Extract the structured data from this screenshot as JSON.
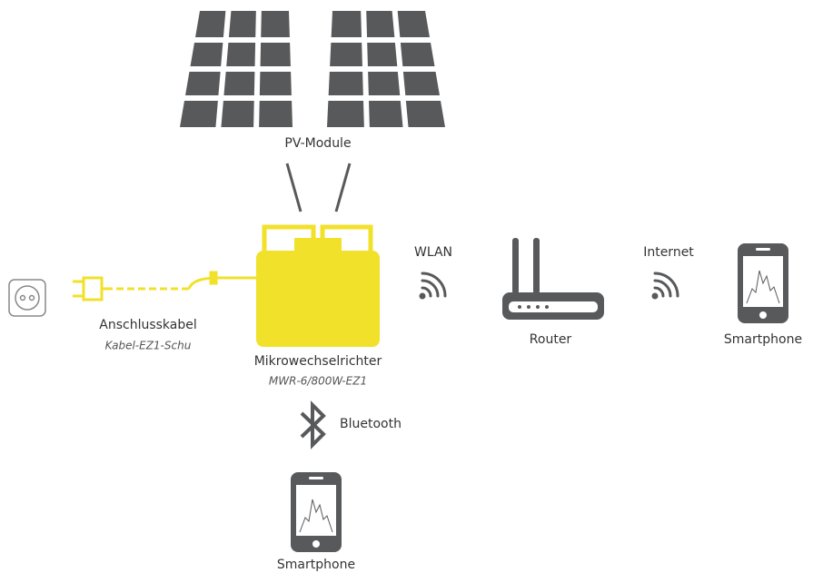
{
  "nodes": [
    {
      "label": "PV-Module"
    },
    {
      "label": "Mikrowechselrichter",
      "model": "MWR-6/800W-EZ1"
    },
    {
      "label": "Anschlusskabel",
      "model": "Kabel-EZ1-Schu"
    },
    {
      "label": "Router"
    },
    {
      "label": "Smartphone"
    },
    {
      "label": "Smartphone"
    }
  ],
  "links": [
    {
      "label": "WLAN"
    },
    {
      "label": "Internet"
    },
    {
      "label": "Bluetooth"
    }
  ]
}
